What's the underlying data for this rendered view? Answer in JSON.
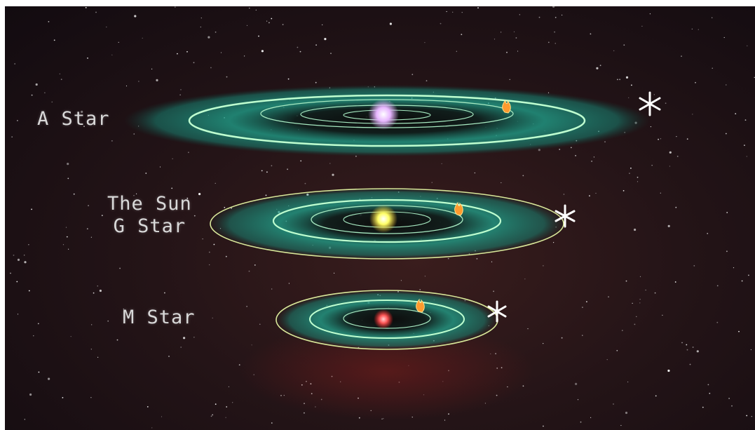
{
  "systems": [
    {
      "label": "A Star",
      "star_color": "#e7b6ff"
    },
    {
      "label_line1": "The Sun",
      "label_line2": "G Star",
      "star_color": "#ffff66"
    },
    {
      "label": "M Star",
      "star_color": "#ff5a5a"
    }
  ],
  "colors": {
    "zone": "#1fa58e",
    "orbit": "#bfffd0",
    "hot_marker": "#ffb347",
    "cold_marker": "#ffffff"
  },
  "icons": {
    "hot": "fire-icon",
    "cold": "snowflake-icon"
  }
}
